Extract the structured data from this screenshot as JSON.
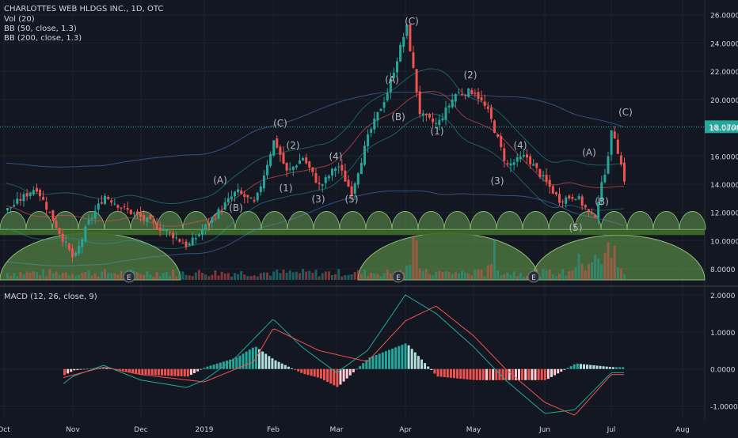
{
  "header": {
    "symbol_line": "CHARLOTTES WEB HLDGS INC., 1D, OTC",
    "vol_label": "Vol (20)",
    "bb50_label": "BB (50, close, 1.3)",
    "bb200_label": "BB (200, close, 1.3)"
  },
  "macd_panel": {
    "label": "MACD (12, 26, close, 9)"
  },
  "colors": {
    "background": "#131722",
    "up": "#26a69a",
    "down": "#ef5350",
    "grid": "#1e222d",
    "text": "#d1d4dc",
    "price_line": "#26a69a",
    "dome": "#6aa84f",
    "macd_line": "#26a69a",
    "signal_line": "#ef5350"
  },
  "chart_data": [
    {
      "type": "candlestick",
      "title": "CHARLOTTES WEB HLDGS INC., 1D, OTC",
      "ylim": [
        7.0,
        26.6
      ],
      "y_ticks": [
        "26.0000",
        "24.0000",
        "22.0000",
        "20.0000",
        "18.0000",
        "16.0000",
        "14.0000",
        "12.0000",
        "10.0000",
        "8.0000"
      ],
      "x_ticks": [
        "Oct",
        "Nov",
        "Dec",
        "2019",
        "Feb",
        "Mar",
        "Apr",
        "May",
        "Jun",
        "Jul",
        "Aug"
      ],
      "last_price": "18.0700",
      "earnings_marker": "E",
      "earnings_count": 3,
      "wave_labels": [
        "(A)",
        "(B)",
        "(C)",
        "(1)",
        "(2)",
        "(3)",
        "(4)",
        "(5)",
        "(A)",
        "(B)",
        "(C)",
        "(1)",
        "(2)",
        "(3)",
        "(4)",
        "(5)",
        "(A)",
        "(B)",
        "(C)"
      ],
      "close_path": [
        {
          "date": "Oct",
          "close": 12.2
        },
        {
          "date": "Oct mid",
          "close": 13.8
        },
        {
          "date": "Nov early",
          "close": 11.2
        },
        {
          "date": "Nov",
          "close": 8.6
        },
        {
          "date": "Nov mid",
          "close": 13.2
        },
        {
          "date": "Nov late",
          "close": 12.3
        },
        {
          "date": "Dec",
          "close": 11.6
        },
        {
          "date": "Dec mid",
          "close": 10.5
        },
        {
          "date": "Dec late",
          "close": 9.6
        },
        {
          "date": "2019",
          "close": 11.0
        },
        {
          "date": "Jan mid",
          "close": 13.5
        },
        {
          "date": "Jan late",
          "close": 12.6
        },
        {
          "date": "Feb",
          "close": 17.2
        },
        {
          "date": "Feb early",
          "close": 14.8
        },
        {
          "date": "Feb mid",
          "close": 15.9
        },
        {
          "date": "Feb late",
          "close": 13.8
        },
        {
          "date": "Mar",
          "close": 15.4
        },
        {
          "date": "Mar early",
          "close": 13.4
        },
        {
          "date": "Mar mid",
          "close": 17.5
        },
        {
          "date": "Mar late",
          "close": 20.5
        },
        {
          "date": "Apr early",
          "close": 18.9
        },
        {
          "date": "Apr",
          "close": 25.2
        },
        {
          "date": "Apr mid",
          "close": 18.2
        },
        {
          "date": "Apr late",
          "close": 20.4
        },
        {
          "date": "May",
          "close": 20.6
        },
        {
          "date": "May early",
          "close": 19.0
        },
        {
          "date": "May mid",
          "close": 15.3
        },
        {
          "date": "May late",
          "close": 16.0
        },
        {
          "date": "Jun early",
          "close": 12.9
        },
        {
          "date": "Jun mid",
          "close": 13.2
        },
        {
          "date": "Jun late",
          "close": 11.5
        },
        {
          "date": "Jun end",
          "close": 15.2
        },
        {
          "date": "Jul early",
          "close": 13.6
        },
        {
          "date": "Jul",
          "close": 18.07
        }
      ]
    },
    {
      "type": "bar",
      "title": "MACD (12, 26, close, 9)",
      "ylim": [
        -1.35,
        2.15
      ],
      "y_ticks": [
        "2.0000",
        "1.0000",
        "0.0000",
        "-1.0000"
      ],
      "macd_path": [
        {
          "date": "Oct late",
          "value": -0.6
        },
        {
          "date": "Nov",
          "value": -0.2
        },
        {
          "date": "Nov mid",
          "value": 0.1
        },
        {
          "date": "Dec",
          "value": -0.3
        },
        {
          "date": "Dec late",
          "value": -0.5
        },
        {
          "date": "2019",
          "value": -0.3
        },
        {
          "date": "Jan mid",
          "value": 0.3
        },
        {
          "date": "Feb",
          "value": 1.35
        },
        {
          "date": "Feb mid",
          "value": 0.6
        },
        {
          "date": "Mar",
          "value": -0.1
        },
        {
          "date": "Mar mid",
          "value": 0.5
        },
        {
          "date": "Apr",
          "value": 2.0
        },
        {
          "date": "Apr mid",
          "value": 1.5
        },
        {
          "date": "May",
          "value": 0.6
        },
        {
          "date": "May mid",
          "value": -0.3
        },
        {
          "date": "Jun",
          "value": -1.2
        },
        {
          "date": "Jun mid",
          "value": -1.1
        },
        {
          "date": "Jul",
          "value": -0.1
        }
      ],
      "signal_path": [
        {
          "date": "Oct late",
          "value": -0.3
        },
        {
          "date": "Nov mid",
          "value": 0.05
        },
        {
          "date": "Dec",
          "value": -0.15
        },
        {
          "date": "2019",
          "value": -0.35
        },
        {
          "date": "Jan late",
          "value": 0.2
        },
        {
          "date": "Feb",
          "value": 1.1
        },
        {
          "date": "Feb late",
          "value": 0.5
        },
        {
          "date": "Mar mid",
          "value": 0.2
        },
        {
          "date": "Apr",
          "value": 1.3
        },
        {
          "date": "Apr mid",
          "value": 1.7
        },
        {
          "date": "May",
          "value": 0.9
        },
        {
          "date": "May mid",
          "value": 0.0
        },
        {
          "date": "Jun",
          "value": -0.9
        },
        {
          "date": "Jun mid",
          "value": -1.25
        },
        {
          "date": "Jul",
          "value": -0.15
        }
      ]
    }
  ]
}
